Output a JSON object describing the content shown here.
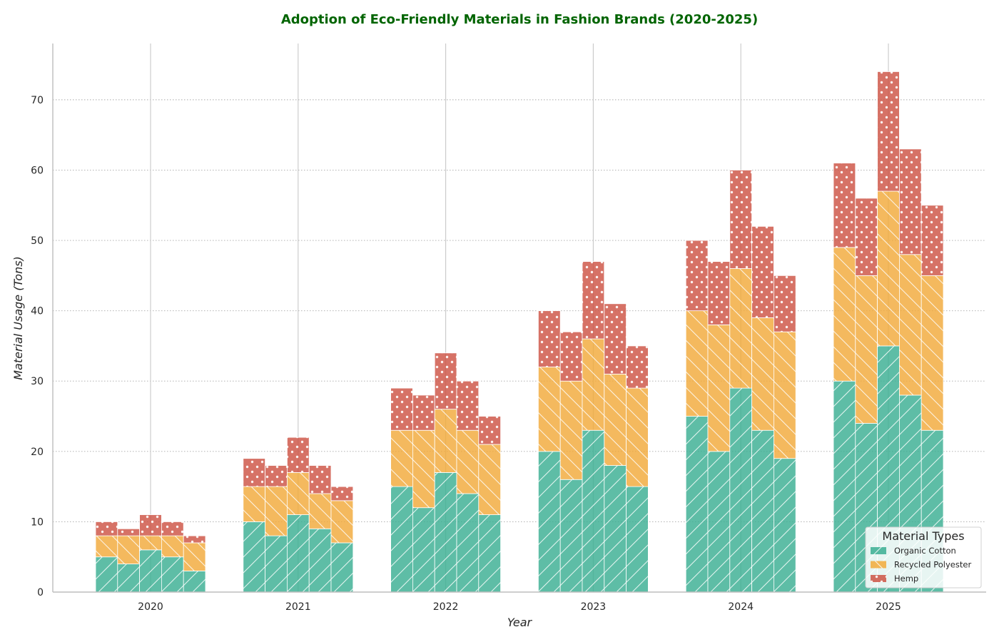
{
  "chart_data": {
    "type": "bar",
    "stacked": true,
    "title": "Adoption of Eco-Friendly Materials in Fashion Brands (2020-2025)",
    "xlabel": "Year",
    "ylabel": "Material Usage (Tons)",
    "categories": [
      "2020",
      "2021",
      "2022",
      "2023",
      "2024",
      "2025"
    ],
    "bars_per_category": 5,
    "ylim": [
      0,
      78
    ],
    "yticks": [
      0,
      10,
      20,
      30,
      40,
      50,
      60,
      70
    ],
    "grid": "horizontal dotted",
    "legend": {
      "title": "Material Types",
      "placement": "bottom-right"
    },
    "series": [
      {
        "name": "Organic Cotton",
        "color": "#3aae93",
        "hatch": "diagonal",
        "values": [
          [
            5,
            4,
            6,
            5,
            3
          ],
          [
            10,
            8,
            11,
            9,
            7
          ],
          [
            15,
            12,
            17,
            14,
            11
          ],
          [
            20,
            16,
            23,
            18,
            15
          ],
          [
            25,
            20,
            29,
            23,
            19
          ],
          [
            30,
            24,
            35,
            28,
            23
          ]
        ]
      },
      {
        "name": "Recycled Polyester",
        "color": "#f2aa3a",
        "hatch": "back-diagonal",
        "values": [
          [
            3,
            4,
            2,
            3,
            4
          ],
          [
            5,
            7,
            6,
            5,
            6
          ],
          [
            8,
            11,
            9,
            9,
            10
          ],
          [
            12,
            14,
            13,
            13,
            14
          ],
          [
            15,
            18,
            17,
            16,
            18
          ],
          [
            19,
            21,
            22,
            20,
            22
          ]
        ]
      },
      {
        "name": "Hemp",
        "color": "#cd5344",
        "hatch": "dots",
        "values": [
          [
            2,
            1,
            3,
            2,
            1
          ],
          [
            4,
            3,
            5,
            4,
            2
          ],
          [
            6,
            5,
            8,
            7,
            4
          ],
          [
            8,
            7,
            11,
            10,
            6
          ],
          [
            10,
            9,
            14,
            13,
            8
          ],
          [
            12,
            11,
            17,
            15,
            10
          ]
        ]
      }
    ]
  }
}
